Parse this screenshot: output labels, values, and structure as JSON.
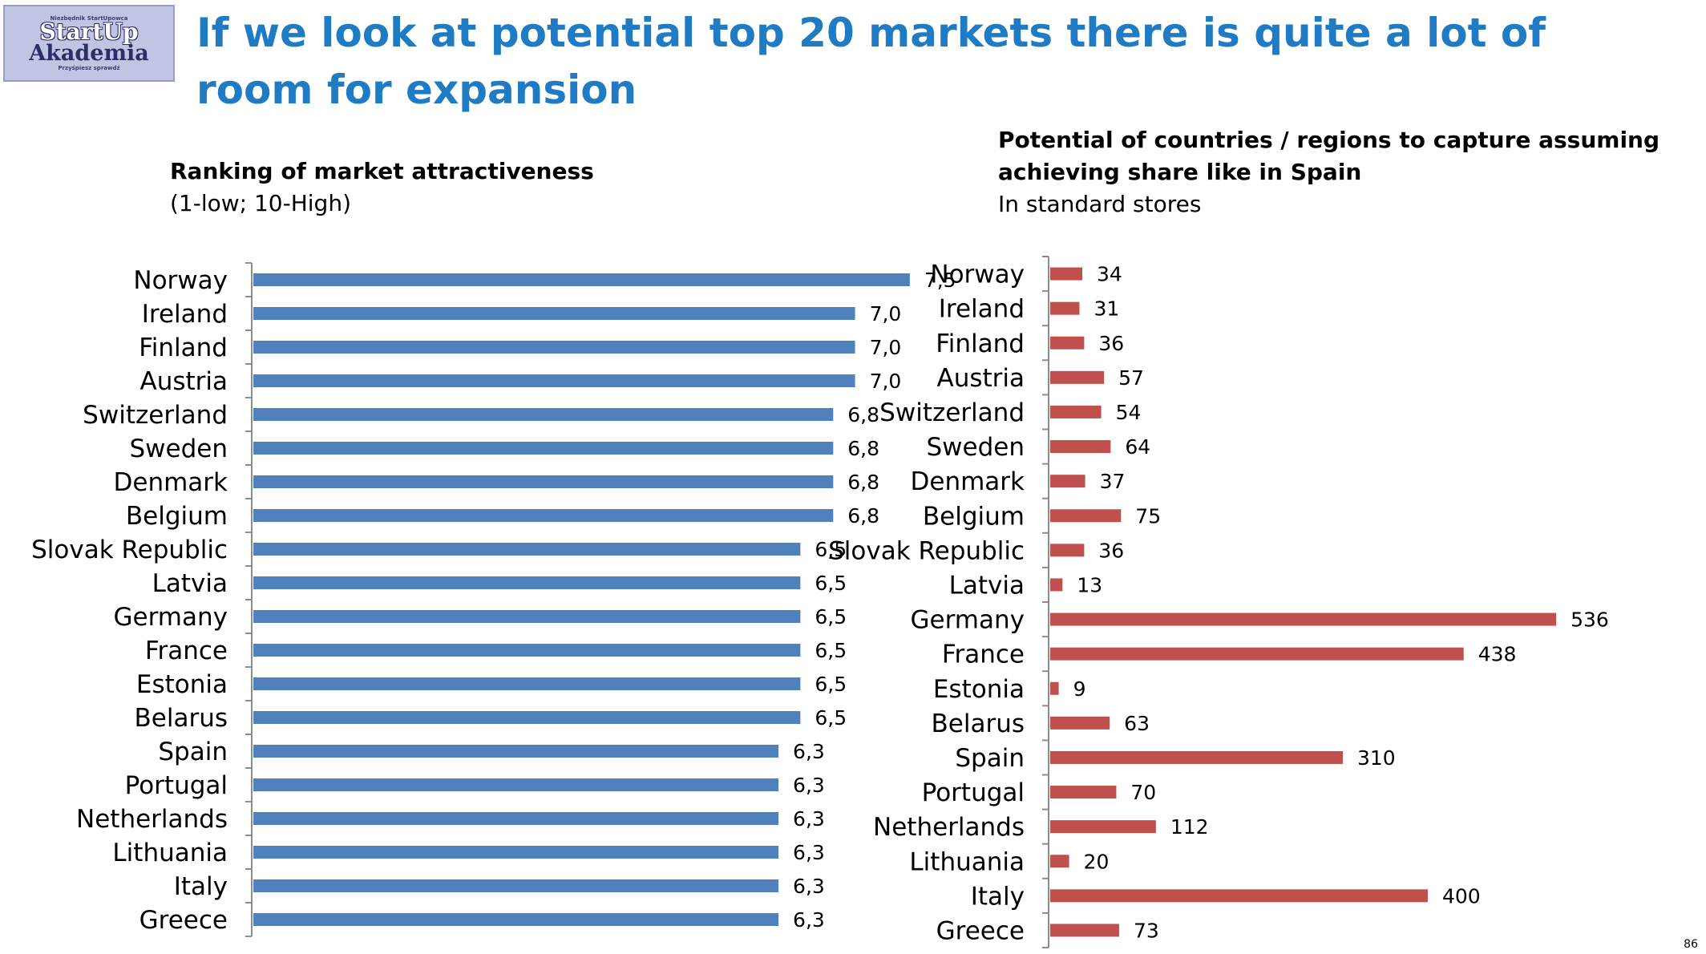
{
  "logo": {
    "top_text": "Niezbędnik StartUpowca",
    "line1": "StartUp",
    "line2": "Akademia",
    "bottom_text": "Przyśpiesz sprawdź"
  },
  "title": "If we look at potential top 20 markets there is quite a lot of room for expansion",
  "page_number": "86",
  "colors": {
    "title": "#1f7bc3",
    "left_bars": "#4f81bd",
    "right_bars": "#c0504d"
  },
  "left_chart": {
    "title": "Ranking of market attractiveness",
    "subtitle": "(1-low; 10-High)"
  },
  "right_chart": {
    "title_line1": "Potential of countries / regions to capture assuming",
    "title_line2": "achieving share like in Spain",
    "subtitle": "In  standard stores"
  },
  "chart_data": [
    {
      "type": "bar",
      "orientation": "horizontal",
      "title": "Ranking of market attractiveness",
      "subtitle": "(1-low; 10-High)",
      "categories": [
        "Norway",
        "Ireland",
        "Finland",
        "Austria",
        "Switzerland",
        "Sweden",
        "Denmark",
        "Belgium",
        "Slovak Republic",
        "Latvia",
        "Germany",
        "France",
        "Estonia",
        "Belarus",
        "Spain",
        "Portugal",
        "Netherlands",
        "Lithuania",
        "Italy",
        "Greece"
      ],
      "values": [
        7.5,
        7.0,
        7.0,
        7.0,
        6.8,
        6.8,
        6.8,
        6.8,
        6.5,
        6.5,
        6.5,
        6.5,
        6.5,
        6.5,
        6.3,
        6.3,
        6.3,
        6.3,
        6.3,
        6.3
      ],
      "value_labels": [
        "7,5",
        "7,0",
        "7,0",
        "7,0",
        "6,8",
        "6,8",
        "6,8",
        "6,8",
        "6,5",
        "6,5",
        "6,5",
        "6,5",
        "6,5",
        "6,5",
        "6,3",
        "6,3",
        "6,3",
        "6,3",
        "6,3",
        "6,3"
      ],
      "xlim": [
        1.5,
        10
      ],
      "color": "#4f81bd"
    },
    {
      "type": "bar",
      "orientation": "horizontal",
      "title": "Potential of countries / regions to capture assuming achieving share like in Spain",
      "subtitle": "In  standard stores",
      "categories": [
        "Norway",
        "Ireland",
        "Finland",
        "Austria",
        "Switzerland",
        "Sweden",
        "Denmark",
        "Belgium",
        "Slovak Republic",
        "Latvia",
        "Germany",
        "France",
        "Estonia",
        "Belarus",
        "Spain",
        "Portugal",
        "Netherlands",
        "Lithuania",
        "Italy",
        "Greece"
      ],
      "values": [
        34,
        31,
        36,
        57,
        54,
        64,
        37,
        75,
        36,
        13,
        536,
        438,
        9,
        63,
        310,
        70,
        112,
        20,
        400,
        73
      ],
      "value_labels": [
        "34",
        "31",
        "36",
        "57",
        "54",
        "64",
        "37",
        "75",
        "36",
        "13",
        "536",
        "438",
        "9",
        "63",
        "310",
        "70",
        "112",
        "20",
        "400",
        "73"
      ],
      "xlim": [
        0,
        620
      ],
      "color": "#c0504d"
    }
  ]
}
